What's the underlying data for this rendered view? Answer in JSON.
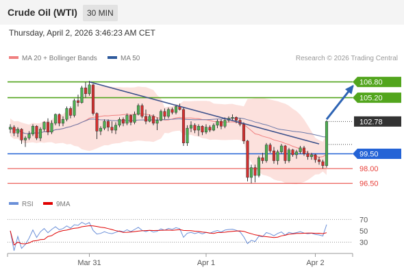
{
  "header": {
    "title": "Crude Oil (WTI)",
    "timeframe": "30 MIN"
  },
  "datetime": "Thursday, April 2, 2026 3:46:23 AM CET",
  "legend": {
    "items": [
      {
        "label": "MA 20 + Bollinger Bands",
        "color": "#f08080"
      },
      {
        "label": "MA 50",
        "color": "#2e5a9c"
      }
    ],
    "credit": "Research © 2026 Trading Central"
  },
  "rsi_legend": {
    "items": [
      {
        "label": "RSI",
        "color": "#6a8fd8"
      },
      {
        "label": "9MA",
        "color": "#e00000"
      }
    ]
  },
  "chart_data": {
    "type": "candlestick",
    "price_axis": {
      "min": 95.5,
      "max": 108.3
    },
    "x_labels": [
      {
        "label": "Mar 31",
        "index": 21
      },
      {
        "label": "Apr 1",
        "index": 52
      },
      {
        "label": "Apr 2",
        "index": 81
      }
    ],
    "current_price": {
      "value": 102.78,
      "label": "102.78"
    },
    "levels": [
      {
        "value": 106.8,
        "label": "106.80",
        "kind": "resistance",
        "color": "#52a51d"
      },
      {
        "value": 105.2,
        "label": "105.20",
        "kind": "resistance",
        "color": "#52a51d"
      },
      {
        "value": 99.5,
        "label": "99.50",
        "kind": "pivot",
        "color": "#2463d6"
      },
      {
        "value": 98.0,
        "label": "98.00",
        "kind": "support",
        "color": "#e8403a"
      },
      {
        "value": 96.5,
        "label": "96.50",
        "kind": "support",
        "color": "#e8403a"
      }
    ],
    "trendline": {
      "from": {
        "index": 21,
        "value": 106.8
      },
      "to": {
        "index": 82,
        "value": 100.5
      },
      "color": "#3a4f8a"
    },
    "projection_arrow": {
      "from": {
        "index": 84,
        "value": 103.0
      },
      "to": {
        "index": 91,
        "value": 106.4
      },
      "color": "#2e64b4"
    },
    "candles": [
      [
        102.0,
        102.5,
        101.6,
        102.2
      ],
      [
        102.2,
        102.4,
        101.3,
        101.6
      ],
      [
        101.6,
        102.2,
        101.2,
        102.0
      ],
      [
        102.0,
        102.1,
        100.5,
        100.9
      ],
      [
        100.9,
        101.3,
        100.2,
        101.1
      ],
      [
        101.1,
        101.8,
        100.9,
        101.5
      ],
      [
        101.5,
        102.5,
        101.3,
        102.3
      ],
      [
        102.3,
        102.4,
        100.9,
        101.1
      ],
      [
        101.1,
        102.2,
        100.8,
        102.0
      ],
      [
        102.0,
        102.8,
        101.8,
        102.7
      ],
      [
        102.7,
        103.1,
        101.4,
        101.7
      ],
      [
        101.7,
        102.9,
        101.5,
        102.6
      ],
      [
        102.6,
        103.6,
        102.4,
        103.5
      ],
      [
        103.5,
        103.6,
        102.3,
        102.6
      ],
      [
        102.6,
        103.3,
        102.3,
        103.0
      ],
      [
        103.0,
        104.3,
        102.8,
        104.1
      ],
      [
        104.1,
        104.3,
        103.1,
        103.4
      ],
      [
        103.4,
        105.1,
        103.2,
        104.9
      ],
      [
        104.9,
        105.5,
        104.3,
        104.7
      ],
      [
        104.7,
        106.4,
        104.6,
        106.2
      ],
      [
        106.2,
        106.8,
        105.2,
        105.6
      ],
      [
        105.6,
        106.9,
        105.4,
        106.5
      ],
      [
        106.5,
        106.6,
        103.4,
        103.6
      ],
      [
        103.6,
        103.7,
        101.0,
        101.8
      ],
      [
        101.8,
        102.3,
        101.4,
        102.1
      ],
      [
        102.1,
        103.0,
        101.9,
        102.8
      ],
      [
        102.8,
        103.0,
        101.8,
        102.2
      ],
      [
        102.2,
        102.8,
        101.6,
        101.9
      ],
      [
        101.9,
        102.7,
        101.5,
        102.4
      ],
      [
        102.4,
        103.2,
        102.2,
        103.0
      ],
      [
        103.0,
        103.2,
        102.3,
        102.6
      ],
      [
        102.6,
        103.6,
        102.4,
        103.4
      ],
      [
        103.4,
        103.5,
        102.4,
        102.7
      ],
      [
        102.7,
        103.8,
        102.5,
        103.5
      ],
      [
        103.5,
        104.6,
        103.4,
        104.4
      ],
      [
        104.4,
        104.6,
        103.1,
        103.3
      ],
      [
        103.3,
        104.0,
        102.5,
        102.8
      ],
      [
        102.8,
        103.5,
        102.7,
        103.3
      ],
      [
        103.3,
        103.5,
        102.4,
        102.6
      ],
      [
        102.6,
        103.2,
        101.9,
        102.9
      ],
      [
        102.9,
        104.0,
        102.8,
        103.8
      ],
      [
        103.8,
        104.1,
        103.0,
        103.3
      ],
      [
        103.3,
        104.2,
        103.1,
        104.0
      ],
      [
        104.0,
        104.2,
        103.5,
        103.7
      ],
      [
        103.7,
        104.5,
        103.5,
        104.3
      ],
      [
        104.3,
        104.6,
        103.9,
        104.0
      ],
      [
        104.0,
        104.2,
        100.3,
        100.6
      ],
      [
        100.6,
        102.4,
        100.3,
        102.1
      ],
      [
        102.1,
        102.8,
        101.7,
        102.4
      ],
      [
        102.4,
        102.6,
        101.6,
        101.9
      ],
      [
        101.9,
        102.5,
        101.3,
        102.3
      ],
      [
        102.3,
        102.4,
        101.4,
        101.7
      ],
      [
        101.7,
        102.5,
        101.5,
        102.2
      ],
      [
        102.2,
        102.4,
        101.7,
        101.9
      ],
      [
        101.9,
        102.6,
        101.8,
        102.4
      ],
      [
        102.4,
        103.0,
        102.1,
        102.8
      ],
      [
        102.8,
        103.0,
        102.0,
        102.3
      ],
      [
        102.3,
        103.2,
        102.1,
        102.9
      ],
      [
        102.9,
        103.3,
        102.7,
        103.1
      ],
      [
        103.1,
        103.5,
        102.9,
        103.2
      ],
      [
        103.2,
        103.3,
        102.6,
        102.9
      ],
      [
        102.9,
        103.1,
        102.3,
        102.5
      ],
      [
        102.5,
        102.7,
        100.5,
        100.8
      ],
      [
        100.8,
        100.9,
        96.7,
        97.1
      ],
      [
        97.1,
        98.4,
        96.5,
        98.1
      ],
      [
        98.1,
        98.4,
        96.6,
        97.3
      ],
      [
        97.3,
        99.3,
        97.1,
        99.1
      ],
      [
        99.1,
        99.6,
        98.5,
        98.8
      ],
      [
        98.8,
        100.6,
        98.6,
        100.4
      ],
      [
        100.4,
        100.6,
        99.6,
        99.8
      ],
      [
        99.8,
        100.2,
        98.5,
        98.8
      ],
      [
        98.8,
        99.9,
        98.4,
        99.7
      ],
      [
        99.7,
        100.5,
        99.5,
        100.3
      ],
      [
        100.3,
        100.4,
        98.5,
        98.8
      ],
      [
        98.8,
        100.1,
        98.6,
        99.9
      ],
      [
        99.9,
        100.0,
        99.2,
        99.4
      ],
      [
        99.4,
        99.9,
        99.0,
        99.7
      ],
      [
        99.7,
        100.3,
        99.5,
        100.1
      ],
      [
        100.1,
        100.3,
        99.3,
        99.5
      ],
      [
        99.5,
        99.8,
        98.9,
        99.2
      ],
      [
        99.2,
        99.6,
        98.9,
        99.4
      ],
      [
        99.4,
        99.5,
        98.6,
        98.9
      ],
      [
        98.9,
        99.2,
        98.4,
        98.7
      ],
      [
        98.7,
        98.9,
        98.0,
        98.3
      ],
      [
        98.3,
        102.9,
        98.1,
        102.78
      ]
    ],
    "rsi": {
      "axis_min": 15,
      "axis_max": 80,
      "ticks": [
        {
          "value": 70,
          "label": "70"
        },
        {
          "value": 50,
          "label": "50"
        },
        {
          "value": 30,
          "label": "30"
        }
      ],
      "band_values": [
        70,
        30
      ]
    }
  }
}
